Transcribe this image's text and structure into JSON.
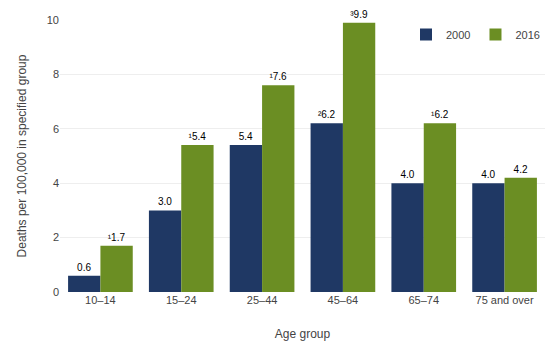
{
  "chart_data": {
    "type": "bar",
    "categories": [
      "10–14",
      "15–24",
      "25–44",
      "45–64",
      "65–74",
      "75 and over"
    ],
    "series": [
      {
        "name": "2000",
        "color": "#1f3864",
        "values": [
          0.6,
          3.0,
          5.4,
          6.2,
          4.0,
          4.0
        ],
        "value_labels": [
          "0.6",
          "3.0",
          "5.4",
          "²6.2",
          "4.0",
          "4.0"
        ]
      },
      {
        "name": "2016",
        "color": "#6b8e23",
        "values": [
          1.7,
          5.4,
          7.6,
          9.9,
          6.2,
          4.2
        ],
        "value_labels": [
          "¹1.7",
          "¹5.4",
          "¹7.6",
          "³9.9",
          "¹6.2",
          "4.2"
        ]
      }
    ],
    "xlabel": "Age group",
    "ylabel": "Deaths per 100,000 in specified group",
    "ylim": [
      0,
      10
    ],
    "yticks": [
      0,
      2,
      4,
      6,
      8,
      10
    ],
    "grid": true,
    "legend": "upper right",
    "data_labels": true
  }
}
